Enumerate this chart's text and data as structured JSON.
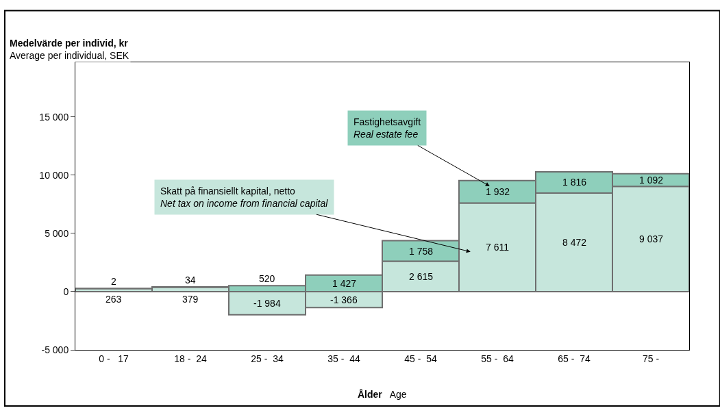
{
  "chart_data": {
    "type": "bar",
    "stacked": true,
    "data_labels": true,
    "legend": false,
    "grid": false,
    "ylabel": "Medelvärde per individ, kr\nAverage per individual, SEK",
    "xlabel": "Ålder Age",
    "categories": [
      "0 -   17",
      "18 -  24",
      "25 -  34",
      "35 -  44",
      "45 -  54",
      "55 -  64",
      "65 -  74",
      "75 -"
    ],
    "series": [
      {
        "name": "Skatt på finansiellt kapital, netto\nNet tax on income from financial capital",
        "color": "#c6e6dc",
        "values": [
          263,
          379,
          -1984,
          -1366,
          2615,
          7611,
          8472,
          9037
        ]
      },
      {
        "name": "Fastighetsavgift\nReal estate fee",
        "color": "#8ecfbb",
        "values": [
          2,
          34,
          520,
          1427,
          1758,
          1932,
          1816,
          1092
        ]
      }
    ],
    "ylim": [
      -5000,
      19700
    ],
    "yticks": [
      {
        "value": -5000,
        "label": "-5 000"
      },
      0,
      {
        "value": 5000,
        "label": "5 000"
      },
      {
        "value": 10000,
        "label": "10 000"
      },
      {
        "value": 15000,
        "label": "15 000"
      }
    ]
  }
}
